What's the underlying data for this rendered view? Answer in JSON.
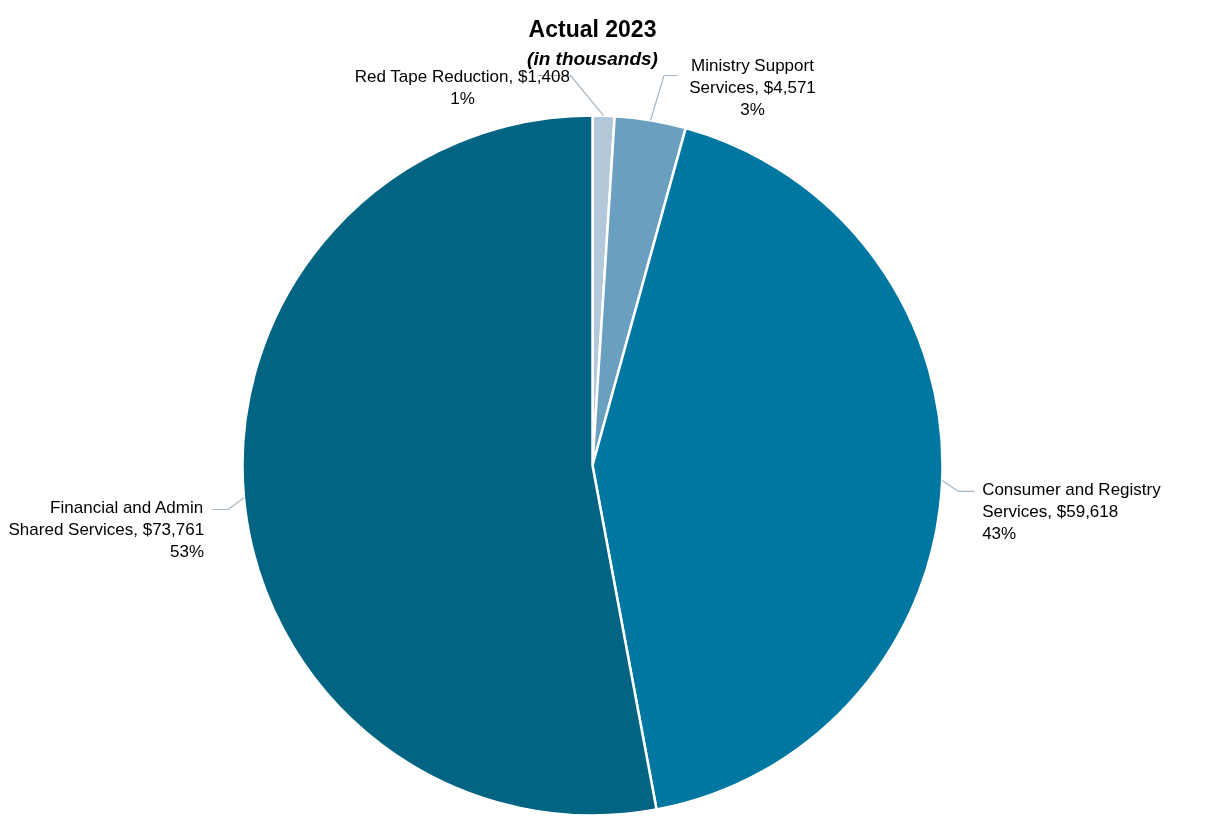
{
  "chart_data": {
    "type": "pie",
    "title": "Actual 2023",
    "subtitle": "(in thousands)",
    "categories": [
      "Red Tape Reduction",
      "Ministry Support Services",
      "Consumer and Registry Services",
      "Financial and Admin Shared Services"
    ],
    "values": [
      1408,
      4571,
      59618,
      73761
    ],
    "colors": [
      "#b3c8d8",
      "#6b9fbf",
      "#0077a1",
      "#006482"
    ],
    "value_labels": [
      "$1,408\n1%",
      "$4,571\n3%",
      "$59,618\n43%",
      "$73,761\n53%"
    ]
  }
}
